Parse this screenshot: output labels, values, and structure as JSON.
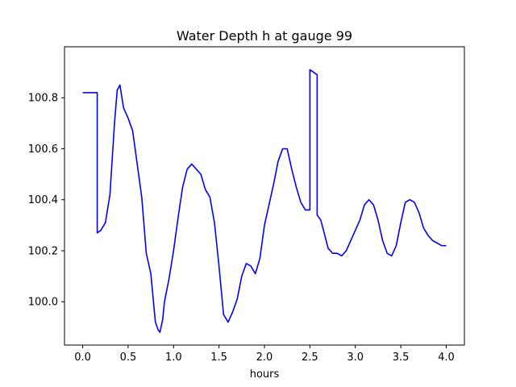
{
  "chart_data": {
    "type": "line",
    "title": "Water Depth h at gauge 99",
    "xlabel": "hours",
    "ylabel": "",
    "xlim": [
      -0.2,
      4.2
    ],
    "ylim": [
      99.83,
      101.0
    ],
    "xticks": [
      0.0,
      0.5,
      1.0,
      1.5,
      2.0,
      2.5,
      3.0,
      3.5,
      4.0
    ],
    "xtick_labels": [
      "0.0",
      "0.5",
      "1.0",
      "1.5",
      "2.0",
      "2.5",
      "3.0",
      "3.5",
      "4.0"
    ],
    "yticks": [
      100.0,
      100.2,
      100.4,
      100.6,
      100.8
    ],
    "ytick_labels": [
      "100.0",
      "100.2",
      "100.4",
      "100.6",
      "100.8"
    ],
    "grid": false,
    "legend": "none",
    "series": [
      {
        "color": "#0000ff",
        "x": [
          0.0,
          0.16,
          0.16,
          0.2,
          0.25,
          0.3,
          0.35,
          0.38,
          0.41,
          0.45,
          0.5,
          0.55,
          0.6,
          0.65,
          0.7,
          0.75,
          0.8,
          0.83,
          0.85,
          0.88,
          0.9,
          0.95,
          1.0,
          1.05,
          1.1,
          1.15,
          1.2,
          1.25,
          1.3,
          1.35,
          1.4,
          1.45,
          1.5,
          1.55,
          1.6,
          1.65,
          1.7,
          1.75,
          1.8,
          1.85,
          1.9,
          1.95,
          2.0,
          2.05,
          2.1,
          2.15,
          2.2,
          2.25,
          2.3,
          2.35,
          2.4,
          2.45,
          2.5,
          2.5,
          2.58,
          2.58,
          2.62,
          2.65,
          2.7,
          2.75,
          2.8,
          2.85,
          2.9,
          2.95,
          3.0,
          3.05,
          3.1,
          3.15,
          3.2,
          3.25,
          3.3,
          3.35,
          3.4,
          3.45,
          3.5,
          3.55,
          3.6,
          3.65,
          3.7,
          3.75,
          3.8,
          3.85,
          3.9,
          3.95,
          4.0
        ],
        "y": [
          100.82,
          100.82,
          100.27,
          100.28,
          100.31,
          100.42,
          100.7,
          100.83,
          100.85,
          100.76,
          100.72,
          100.67,
          100.54,
          100.41,
          100.19,
          100.11,
          99.92,
          99.89,
          99.88,
          99.93,
          100.0,
          100.09,
          100.2,
          100.33,
          100.45,
          100.52,
          100.54,
          100.52,
          100.5,
          100.44,
          100.41,
          100.31,
          100.14,
          99.95,
          99.92,
          99.96,
          100.01,
          100.1,
          100.15,
          100.14,
          100.11,
          100.17,
          100.3,
          100.38,
          100.46,
          100.55,
          100.6,
          100.6,
          100.52,
          100.45,
          100.39,
          100.36,
          100.36,
          100.91,
          100.89,
          100.34,
          100.32,
          100.28,
          100.21,
          100.19,
          100.19,
          100.18,
          100.2,
          100.24,
          100.28,
          100.32,
          100.38,
          100.4,
          100.38,
          100.32,
          100.24,
          100.19,
          100.18,
          100.22,
          100.31,
          100.39,
          100.4,
          100.39,
          100.35,
          100.29,
          100.26,
          100.24,
          100.23,
          100.22,
          100.22
        ]
      }
    ]
  }
}
